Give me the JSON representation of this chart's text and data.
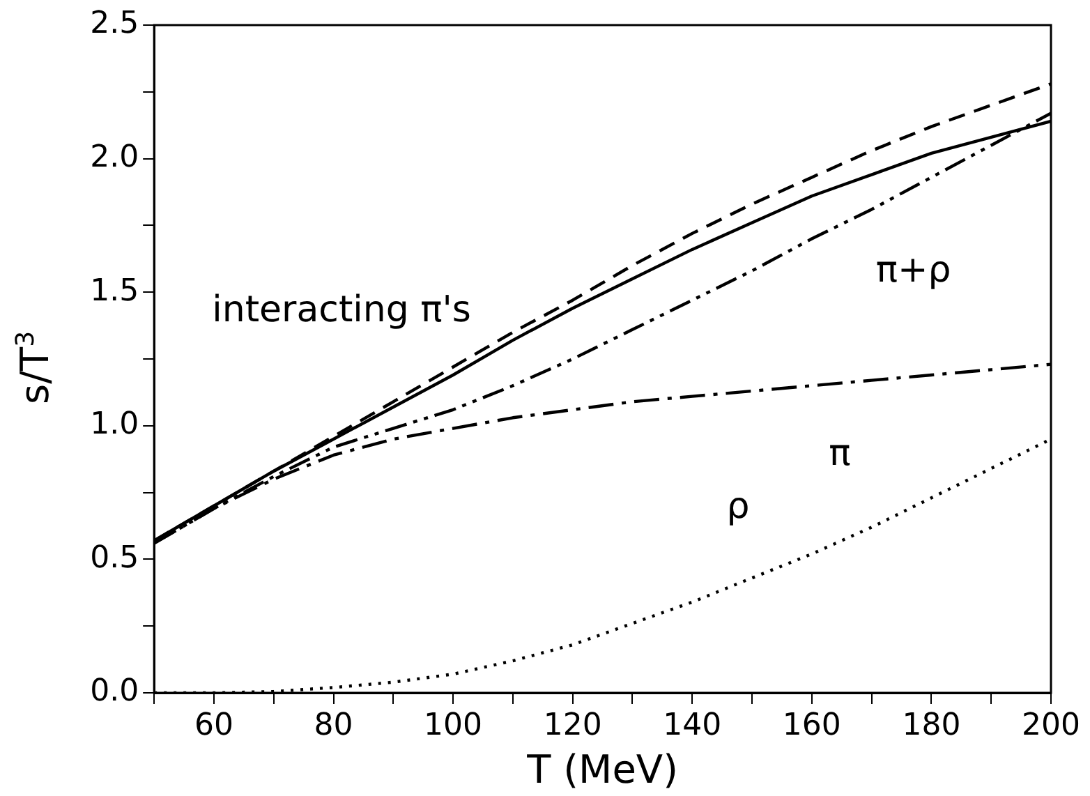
{
  "chart_data": {
    "type": "line",
    "xlabel": "T (MeV)",
    "ylabel": "s/T$^{3}$",
    "x": [
      50,
      60,
      70,
      80,
      90,
      100,
      110,
      120,
      130,
      140,
      150,
      160,
      170,
      180,
      190,
      200
    ],
    "series": [
      {
        "name": "interacting π's",
        "color": "#000000",
        "line_style": "solid",
        "values": [
          0.57,
          0.7,
          0.83,
          0.95,
          1.07,
          1.19,
          1.32,
          1.44,
          1.55,
          1.66,
          1.76,
          1.86,
          1.94,
          2.02,
          2.08,
          2.14
        ]
      },
      {
        "color": "#000000",
        "line_style": "dashed",
        "values": [
          0.57,
          0.7,
          0.83,
          0.96,
          1.09,
          1.22,
          1.35,
          1.47,
          1.6,
          1.72,
          1.83,
          1.93,
          2.03,
          2.12,
          2.2,
          2.28
        ]
      },
      {
        "name": "π+ρ",
        "color": "#000000",
        "line_style": "dashdotdot",
        "values": [
          0.56,
          0.69,
          0.81,
          0.92,
          0.99,
          1.06,
          1.15,
          1.25,
          1.36,
          1.47,
          1.58,
          1.7,
          1.81,
          1.93,
          2.05,
          2.17
        ]
      },
      {
        "name": "π",
        "color": "#000000",
        "line_style": "dashdot",
        "values": [
          0.56,
          0.69,
          0.8,
          0.89,
          0.95,
          0.99,
          1.03,
          1.06,
          1.09,
          1.11,
          1.13,
          1.15,
          1.17,
          1.19,
          1.21,
          1.23
        ]
      },
      {
        "name": "ρ",
        "color": "#000000",
        "line_style": "dotted",
        "values": [
          0.0,
          0.0,
          0.005,
          0.02,
          0.04,
          0.07,
          0.12,
          0.18,
          0.26,
          0.34,
          0.43,
          0.52,
          0.62,
          0.73,
          0.84,
          0.95
        ]
      }
    ],
    "xlim": [
      50,
      200
    ],
    "ylim": [
      0,
      2.5
    ],
    "xticks": [
      {
        "value": 50,
        "label": null
      },
      60,
      {
        "value": 70,
        "label": null
      },
      80,
      {
        "value": 90,
        "label": null
      },
      100,
      {
        "value": 110,
        "label": null
      },
      120,
      {
        "value": 130,
        "label": null
      },
      140,
      {
        "value": 150,
        "label": null
      },
      160,
      {
        "value": 170,
        "label": null
      },
      180,
      {
        "value": 190,
        "label": null
      },
      200
    ],
    "yticks": [
      {
        "value": 0,
        "label": "0.0"
      },
      {
        "value": 0.25,
        "label": null
      },
      0.5,
      {
        "value": 0.75,
        "label": null
      },
      {
        "value": 1,
        "label": "1.0"
      },
      {
        "value": 1.25,
        "label": null
      },
      1.5,
      {
        "value": 1.75,
        "label": null
      },
      {
        "value": 2,
        "label": "2.0"
      },
      {
        "value": 2.25,
        "label": null
      },
      2.5
    ],
    "grid": false,
    "legend": false
  }
}
